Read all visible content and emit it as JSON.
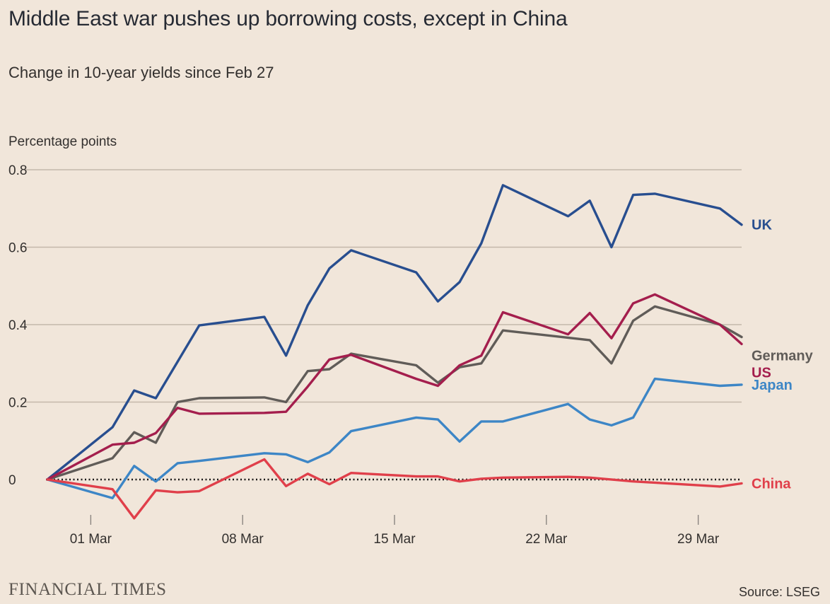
{
  "header": {
    "title": "Middle East war pushes up borrowing costs, except in China",
    "subtitle": "Change in 10-year yields since Feb 27"
  },
  "footer": {
    "brand": "FINANCIAL TIMES",
    "source": "Source: LSEG"
  },
  "chart_data": {
    "type": "line",
    "title": "Middle East war pushes up borrowing costs, except in China",
    "subtitle": "Change in 10-year yields since Feb 27",
    "ylabel": "Percentage points",
    "xlabel": "",
    "ylim": [
      -0.12,
      0.8
    ],
    "y_ticks": [
      0,
      0.2,
      0.4,
      0.6,
      0.8
    ],
    "y_tick_labels": [
      "0",
      "0.2",
      "0.4",
      "0.6",
      "0.8"
    ],
    "x_range": [
      "2026-02-27",
      "2026-03-31"
    ],
    "x_ticks": [
      "2026-03-01",
      "2026-03-08",
      "2026-03-15",
      "2026-03-22",
      "2026-03-29"
    ],
    "x_tick_labels": [
      "01 Mar",
      "08 Mar",
      "15 Mar",
      "22 Mar",
      "29 Mar"
    ],
    "grid": true,
    "zero_line": "dotted",
    "legend": "direct labels at right end of lines",
    "series": [
      {
        "name": "UK",
        "color": "#284e8f",
        "points": [
          [
            "2026-02-27",
            0.0
          ],
          [
            "2026-03-02",
            0.135
          ],
          [
            "2026-03-03",
            0.23
          ],
          [
            "2026-03-04",
            0.21
          ],
          [
            "2026-03-06",
            0.398
          ],
          [
            "2026-03-09",
            0.42
          ],
          [
            "2026-03-10",
            0.32
          ],
          [
            "2026-03-11",
            0.45
          ],
          [
            "2026-03-12",
            0.545
          ],
          [
            "2026-03-13",
            0.592
          ],
          [
            "2026-03-16",
            0.535
          ],
          [
            "2026-03-17",
            0.46
          ],
          [
            "2026-03-18",
            0.51
          ],
          [
            "2026-03-19",
            0.61
          ],
          [
            "2026-03-20",
            0.76
          ],
          [
            "2026-03-23",
            0.68
          ],
          [
            "2026-03-24",
            0.72
          ],
          [
            "2026-03-25",
            0.6
          ],
          [
            "2026-03-26",
            0.735
          ],
          [
            "2026-03-27",
            0.738
          ],
          [
            "2026-03-30",
            0.7
          ],
          [
            "2026-03-31",
            0.658
          ]
        ]
      },
      {
        "name": "Germany",
        "color": "#605c58",
        "points": [
          [
            "2026-02-27",
            0.0
          ],
          [
            "2026-03-02",
            0.055
          ],
          [
            "2026-03-03",
            0.122
          ],
          [
            "2026-03-04",
            0.095
          ],
          [
            "2026-03-05",
            0.2
          ],
          [
            "2026-03-06",
            0.21
          ],
          [
            "2026-03-09",
            0.212
          ],
          [
            "2026-03-10",
            0.2
          ],
          [
            "2026-03-11",
            0.28
          ],
          [
            "2026-03-12",
            0.285
          ],
          [
            "2026-03-13",
            0.325
          ],
          [
            "2026-03-16",
            0.295
          ],
          [
            "2026-03-17",
            0.25
          ],
          [
            "2026-03-18",
            0.29
          ],
          [
            "2026-03-19",
            0.3
          ],
          [
            "2026-03-20",
            0.385
          ],
          [
            "2026-03-24",
            0.36
          ],
          [
            "2026-03-25",
            0.3
          ],
          [
            "2026-03-26",
            0.41
          ],
          [
            "2026-03-27",
            0.447
          ],
          [
            "2026-03-30",
            0.4
          ],
          [
            "2026-03-31",
            0.368
          ]
        ]
      },
      {
        "name": "US",
        "color": "#a41e4d",
        "points": [
          [
            "2026-02-27",
            0.0
          ],
          [
            "2026-03-02",
            0.09
          ],
          [
            "2026-03-03",
            0.095
          ],
          [
            "2026-03-04",
            0.12
          ],
          [
            "2026-03-05",
            0.185
          ],
          [
            "2026-03-06",
            0.17
          ],
          [
            "2026-03-09",
            0.172
          ],
          [
            "2026-03-10",
            0.175
          ],
          [
            "2026-03-11",
            0.24
          ],
          [
            "2026-03-12",
            0.31
          ],
          [
            "2026-03-13",
            0.322
          ],
          [
            "2026-03-16",
            0.26
          ],
          [
            "2026-03-17",
            0.242
          ],
          [
            "2026-03-18",
            0.295
          ],
          [
            "2026-03-19",
            0.32
          ],
          [
            "2026-03-20",
            0.432
          ],
          [
            "2026-03-23",
            0.375
          ],
          [
            "2026-03-24",
            0.43
          ],
          [
            "2026-03-25",
            0.365
          ],
          [
            "2026-03-26",
            0.455
          ],
          [
            "2026-03-27",
            0.478
          ],
          [
            "2026-03-30",
            0.4
          ],
          [
            "2026-03-31",
            0.35
          ]
        ]
      },
      {
        "name": "Japan",
        "color": "#3d86c6",
        "points": [
          [
            "2026-02-27",
            0.0
          ],
          [
            "2026-03-02",
            -0.048
          ],
          [
            "2026-03-03",
            0.035
          ],
          [
            "2026-03-04",
            -0.005
          ],
          [
            "2026-03-05",
            0.042
          ],
          [
            "2026-03-06",
            0.048
          ],
          [
            "2026-03-09",
            0.068
          ],
          [
            "2026-03-10",
            0.065
          ],
          [
            "2026-03-11",
            0.045
          ],
          [
            "2026-03-12",
            0.07
          ],
          [
            "2026-03-13",
            0.125
          ],
          [
            "2026-03-16",
            0.16
          ],
          [
            "2026-03-17",
            0.155
          ],
          [
            "2026-03-18",
            0.098
          ],
          [
            "2026-03-19",
            0.15
          ],
          [
            "2026-03-20",
            0.15
          ],
          [
            "2026-03-23",
            0.195
          ],
          [
            "2026-03-24",
            0.155
          ],
          [
            "2026-03-25",
            0.14
          ],
          [
            "2026-03-26",
            0.16
          ],
          [
            "2026-03-27",
            0.26
          ],
          [
            "2026-03-30",
            0.242
          ],
          [
            "2026-03-31",
            0.245
          ]
        ]
      },
      {
        "name": "China",
        "color": "#e03f4a",
        "points": [
          [
            "2026-02-27",
            0.0
          ],
          [
            "2026-03-02",
            -0.025
          ],
          [
            "2026-03-03",
            -0.1
          ],
          [
            "2026-03-04",
            -0.028
          ],
          [
            "2026-03-05",
            -0.033
          ],
          [
            "2026-03-06",
            -0.03
          ],
          [
            "2026-03-09",
            0.052
          ],
          [
            "2026-03-10",
            -0.017
          ],
          [
            "2026-03-11",
            0.015
          ],
          [
            "2026-03-12",
            -0.012
          ],
          [
            "2026-03-13",
            0.017
          ],
          [
            "2026-03-16",
            0.008
          ],
          [
            "2026-03-17",
            0.008
          ],
          [
            "2026-03-18",
            -0.005
          ],
          [
            "2026-03-19",
            0.002
          ],
          [
            "2026-03-20",
            0.005
          ],
          [
            "2026-03-23",
            0.007
          ],
          [
            "2026-03-24",
            0.005
          ],
          [
            "2026-03-26",
            -0.005
          ],
          [
            "2026-03-27",
            -0.008
          ],
          [
            "2026-03-30",
            -0.018
          ],
          [
            "2026-03-31",
            -0.01
          ]
        ]
      }
    ],
    "series_label_offsets": {
      "UK": 0,
      "Germany": 26,
      "US": 40,
      "Japan": 0,
      "China": 0
    }
  }
}
